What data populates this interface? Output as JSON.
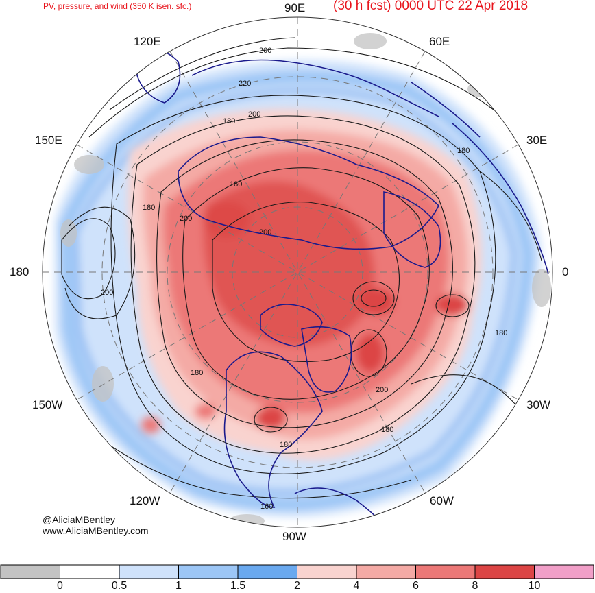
{
  "header": {
    "left_title": "PV, pressure, and wind (350 K isen. sfc.)",
    "right_title": "(30 h fcst) 0000 UTC 22 Apr 2018"
  },
  "longitude_labels": {
    "e90": "90E",
    "e120": "120E",
    "e60": "60E",
    "e150": "150E",
    "e30": "30E",
    "d180": "180",
    "zero": "0",
    "w150": "150W",
    "w30": "30W",
    "w120": "120W",
    "w60": "60W",
    "w90": "90W"
  },
  "contour_labels": [
    "200",
    "220",
    "200",
    "180",
    "180",
    "180",
    "200",
    "200",
    "180",
    "200",
    "180",
    "200",
    "180",
    "180",
    "160",
    "180"
  ],
  "credits": {
    "handle": "@AliciaMBentley",
    "site": "www.AliciaMBentley.com"
  },
  "colorbar": {
    "labels": [
      "0",
      "0.5",
      "1",
      "1.5",
      "2",
      "4",
      "6",
      "8",
      "10"
    ],
    "colors": [
      "#c3c3c3",
      "#ffffff",
      "#cfe2fb",
      "#9cc6f6",
      "#6aa9ef",
      "#f9d3cf",
      "#f4aaa5",
      "#ec7877",
      "#dc4545",
      "#f19fc8"
    ]
  },
  "colors": {
    "continents": "#1a1a8c",
    "contours": "#1a1a1a",
    "grid": "#777777",
    "title": "#e8141c"
  }
}
